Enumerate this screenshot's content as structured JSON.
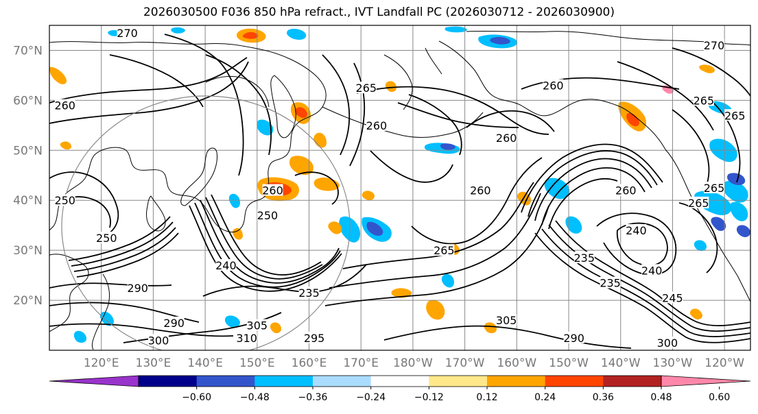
{
  "title": "2026030500 F036 850 hPa refract., IVT Landfall PC (2026030712 - 2026030900)",
  "colors": {
    "background": "#ffffff",
    "grid": "#888888",
    "coast": "#000000",
    "contour": "#000000",
    "circle": "#888888"
  },
  "chart_data": {
    "type": "heatmap",
    "title": "2026030500 F036 850 hPa refract., IVT Landfall PC (2026030712 - 2026030900)",
    "projection": "PlateCarree, central longitude 180",
    "lon_range": [
      110,
      245
    ],
    "lat_range": [
      10,
      75
    ],
    "lat_ticks": [
      {
        "lat": 70,
        "label": "70°N"
      },
      {
        "lat": 60,
        "label": "60°N"
      },
      {
        "lat": 50,
        "label": "50°N"
      },
      {
        "lat": 40,
        "label": "40°N"
      },
      {
        "lat": 30,
        "label": "30°N"
      },
      {
        "lat": 20,
        "label": "20°N"
      }
    ],
    "lon_ticks": [
      {
        "lon": 120,
        "label": "120°E"
      },
      {
        "lon": 130,
        "label": "130°E"
      },
      {
        "lon": 140,
        "label": "140°E"
      },
      {
        "lon": 150,
        "label": "150°E"
      },
      {
        "lon": 160,
        "label": "160°E"
      },
      {
        "lon": 170,
        "label": "170°E"
      },
      {
        "lon": 180,
        "label": "180°W"
      },
      {
        "lon": 190,
        "label": "170°W"
      },
      {
        "lon": 200,
        "label": "160°W"
      },
      {
        "lon": 210,
        "label": "150°W"
      },
      {
        "lon": 220,
        "label": "140°W"
      },
      {
        "lon": 230,
        "label": "130°W"
      },
      {
        "lon": 240,
        "label": "120°W"
      }
    ],
    "colorbar": {
      "levels": [
        -0.72,
        -0.6,
        -0.48,
        -0.36,
        -0.24,
        -0.12,
        0.12,
        0.24,
        0.36,
        0.48,
        0.6,
        0.72
      ],
      "colors": [
        "#9933cc",
        "#00008b",
        "#3355cc",
        "#00bfff",
        "#aadcff",
        "#ffffff",
        "#ffe88a",
        "#ffa500",
        "#ff4500",
        "#b22222",
        "#ff88aa"
      ],
      "extend": "both",
      "tick_labels": [
        "−0.60",
        "−0.48",
        "−0.36",
        "−0.24",
        "−0.12",
        "0.12",
        "0.24",
        "0.36",
        "0.48",
        "0.60"
      ],
      "tick_values": [
        -0.6,
        -0.48,
        -0.36,
        -0.24,
        -0.12,
        0.12,
        0.24,
        0.36,
        0.48,
        0.6
      ]
    },
    "contour_labels": [
      {
        "text": "270",
        "lon": 125,
        "lat": 73.5
      },
      {
        "text": "260",
        "lon": 113,
        "lat": 59
      },
      {
        "text": "250",
        "lon": 113,
        "lat": 40
      },
      {
        "text": "250",
        "lon": 121,
        "lat": 32.5
      },
      {
        "text": "265",
        "lon": 171,
        "lat": 62.5
      },
      {
        "text": "260",
        "lon": 173,
        "lat": 55
      },
      {
        "text": "260",
        "lon": 207,
        "lat": 63
      },
      {
        "text": "260",
        "lon": 198,
        "lat": 52.5
      },
      {
        "text": "270",
        "lon": 238,
        "lat": 71
      },
      {
        "text": "265",
        "lon": 236,
        "lat": 60
      },
      {
        "text": "265",
        "lon": 242,
        "lat": 57
      },
      {
        "text": "260",
        "lon": 193,
        "lat": 42
      },
      {
        "text": "260",
        "lon": 221,
        "lat": 42
      },
      {
        "text": "265",
        "lon": 238,
        "lat": 42.5
      },
      {
        "text": "265",
        "lon": 235,
        "lat": 39.5
      },
      {
        "text": "240",
        "lon": 223,
        "lat": 34
      },
      {
        "text": "240",
        "lon": 226,
        "lat": 26
      },
      {
        "text": "235",
        "lon": 213,
        "lat": 28.5
      },
      {
        "text": "235",
        "lon": 160,
        "lat": 21.5
      },
      {
        "text": "240",
        "lon": 144,
        "lat": 27
      },
      {
        "text": "250",
        "lon": 152,
        "lat": 37
      },
      {
        "text": "260",
        "lon": 153,
        "lat": 42
      },
      {
        "text": "265",
        "lon": 186,
        "lat": 30
      },
      {
        "text": "290",
        "lon": 127,
        "lat": 22.5
      },
      {
        "text": "290",
        "lon": 134,
        "lat": 15.5
      },
      {
        "text": "300",
        "lon": 131,
        "lat": 12
      },
      {
        "text": "305",
        "lon": 150,
        "lat": 15
      },
      {
        "text": "310",
        "lon": 148,
        "lat": 12.5
      },
      {
        "text": "295",
        "lon": 161,
        "lat": 12.5
      },
      {
        "text": "305",
        "lon": 198,
        "lat": 16
      },
      {
        "text": "290",
        "lon": 211,
        "lat": 12.5
      },
      {
        "text": "300",
        "lon": 229,
        "lat": 11.5
      },
      {
        "text": "245",
        "lon": 230,
        "lat": 20.5
      },
      {
        "text": "235",
        "lon": 218,
        "lat": 23.5
      }
    ]
  }
}
